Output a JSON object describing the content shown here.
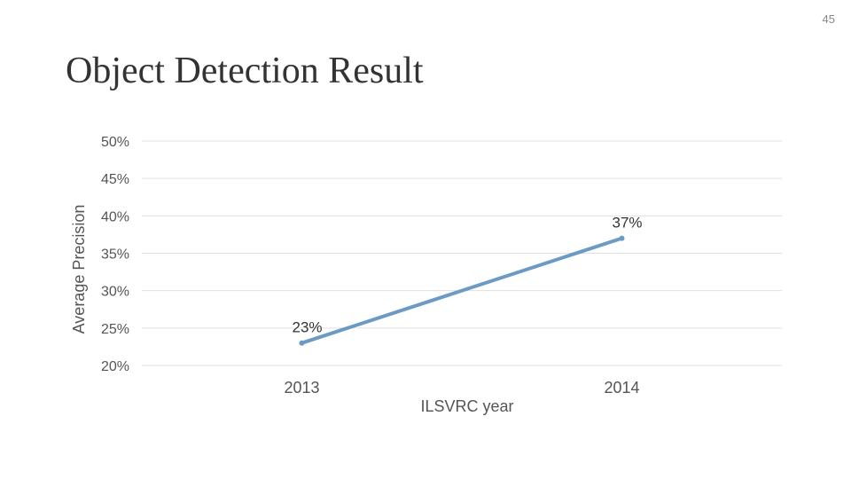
{
  "slide": {
    "page_number": "45",
    "title": "Object Detection Result"
  },
  "colors": {
    "series": "#6b9ac4",
    "grid": "#e0e0e0"
  },
  "chart_data": {
    "type": "line",
    "categories": [
      "2013",
      "2014"
    ],
    "series": [
      {
        "values": [
          0.23,
          0.37
        ],
        "labels": [
          "23%",
          "37%"
        ]
      }
    ],
    "xlabel": "ILSVRC year",
    "ylabel": "Average Precision",
    "ylim": [
      0.2,
      0.5
    ],
    "yticks": [
      0.2,
      0.25,
      0.3,
      0.35,
      0.4,
      0.45,
      0.5
    ],
    "ytick_labels": [
      "20%",
      "25%",
      "30%",
      "35%",
      "40%",
      "45%",
      "50%"
    ],
    "grid": true,
    "legend": "none"
  }
}
